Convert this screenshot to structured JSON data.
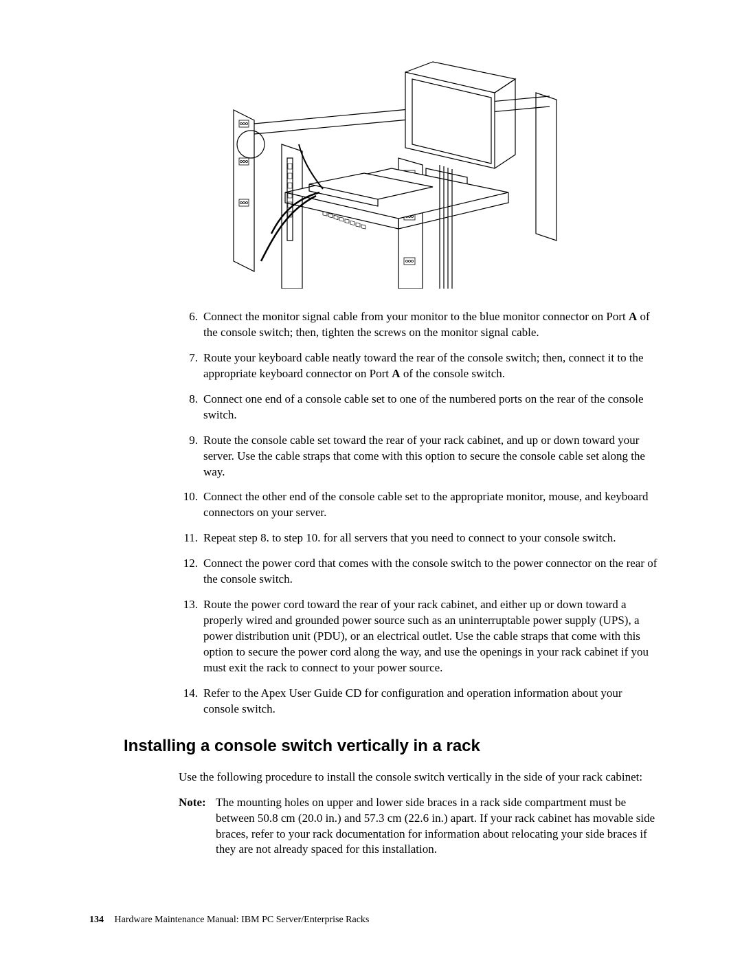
{
  "figure": {
    "stroke": "#000000",
    "fill": "#ffffff"
  },
  "steps": [
    {
      "n": "6.",
      "html": "Connect the monitor signal cable from your monitor to the blue monitor connector on Port <b>A</b> of the console switch; then, tighten the screws on the monitor signal cable."
    },
    {
      "n": "7.",
      "html": "Route your keyboard cable neatly toward the rear of the console switch; then, connect it to the appropriate keyboard connector on Port <b>A</b> of the console switch."
    },
    {
      "n": "8.",
      "html": "Connect one end of a console cable set to one of the numbered ports on the rear of the console switch."
    },
    {
      "n": "9.",
      "html": "Route the console cable set toward the rear of your rack cabinet, and up or down toward your server.  Use the cable straps that come with this option to secure the console cable set along the way."
    },
    {
      "n": "10.",
      "html": "Connect the other end of the console cable set to the appropriate monitor, mouse, and keyboard connectors on your server."
    },
    {
      "n": "11.",
      "html": "Repeat step 8. to step 10. for all servers that you need to connect to your console switch."
    },
    {
      "n": "12.",
      "html": "Connect the power cord that comes with the console switch to the power connector on the rear of the console switch."
    },
    {
      "n": "13.",
      "html": "Route the power cord toward the rear of your rack cabinet, and either up or down toward a properly wired and grounded power source such as an uninterruptable power supply (UPS), a power distribution unit (PDU), or an electrical outlet.  Use the cable straps that come with this option to secure the power cord along the way, and use the openings in your rack cabinet if you must exit the rack to connect to your power source."
    },
    {
      "n": "14.",
      "html": "Refer to the Apex User Guide CD for configuration and operation information about your console switch."
    }
  ],
  "section_heading": "Installing a console switch vertically in a rack",
  "intro": "Use the following procedure to install the console switch vertically in the side of your rack cabinet:",
  "note_label": "Note:",
  "note_text": "The mounting holes on upper and lower side braces in a rack side compartment must be between 50.8 cm (20.0 in.) and 57.3 cm (22.6 in.) apart.  If your rack cabinet has movable side braces, refer to your rack documentation for information about relocating your side braces if they are not already spaced for this installation.",
  "footer": {
    "page": "134",
    "title": "Hardware Maintenance Manual: IBM PC Server/Enterprise Racks"
  }
}
